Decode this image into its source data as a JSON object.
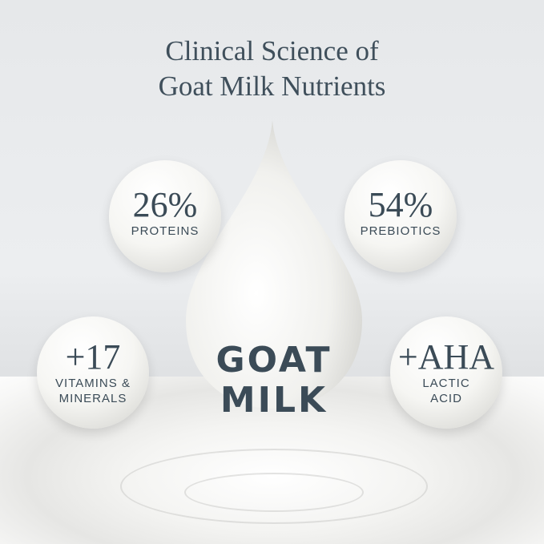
{
  "title": {
    "line1": "Clinical Science of",
    "line2": "Goat Milk Nutrients"
  },
  "drop": {
    "line1": "GOAT",
    "line2": "MILK"
  },
  "stats": [
    {
      "value": "26%",
      "label1": "PROTEINS",
      "label2": ""
    },
    {
      "value": "54%",
      "label1": "PREBIOTICS",
      "label2": ""
    },
    {
      "value": "+17",
      "label1": "VITAMINS &",
      "label2": "MINERALS"
    },
    {
      "value": "+AHA",
      "label1": "LACTIC",
      "label2": "ACID"
    }
  ],
  "colors": {
    "text": "#3b4b57"
  }
}
